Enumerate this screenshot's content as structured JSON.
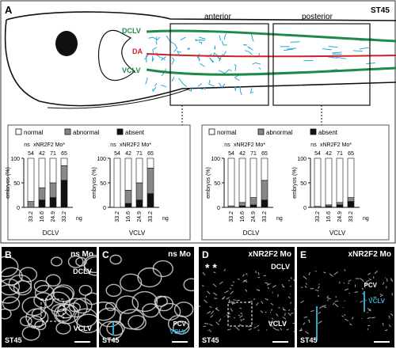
{
  "panelA": {
    "label": "A",
    "stage": "ST45",
    "vessel_labels": {
      "dclv": "DCLV",
      "da": "DA",
      "vclv": "VCLV"
    },
    "boxes": {
      "anterior": "anterior",
      "posterior": "posterior"
    }
  },
  "legend": {
    "normal": "normal",
    "abnormal": "abnormal",
    "absent": "absent"
  },
  "colors": {
    "dclv_green": "#1e8a4a",
    "da_red": "#d0202a",
    "lymph_cyan": "#29a9d6",
    "abnormal_gray": "#888888",
    "absent_black": "#111111"
  },
  "chart_data": [
    {
      "type": "bar",
      "title": "anterior DCLV",
      "xlabel": "DCLV",
      "ylabel": "embryos (%)",
      "ylim": [
        0,
        100
      ],
      "yticks": [
        0,
        50,
        100
      ],
      "categories": [
        "33.2",
        "16.6",
        "24.9",
        "33.2"
      ],
      "n": [
        "54",
        "42",
        "71",
        "65"
      ],
      "group_labels": [
        "ns",
        "xNR2F2 Mo*"
      ],
      "unit": "ng",
      "series": [
        {
          "name": "normal",
          "values": [
            88,
            60,
            50,
            15
          ]
        },
        {
          "name": "abnormal",
          "values": [
            12,
            25,
            30,
            30
          ]
        },
        {
          "name": "absent",
          "values": [
            0,
            15,
            20,
            55
          ]
        }
      ]
    },
    {
      "type": "bar",
      "title": "anterior VCLV",
      "xlabel": "VCLV",
      "ylabel": "embryos (%)",
      "ylim": [
        0,
        100
      ],
      "yticks": [
        0,
        50,
        100
      ],
      "categories": [
        "33.2",
        "16.6",
        "24.9",
        "33.2"
      ],
      "n": [
        "54",
        "42",
        "71",
        "65"
      ],
      "group_labels": [
        "ns",
        "xNR2F2 Mo*"
      ],
      "unit": "ng",
      "series": [
        {
          "name": "normal",
          "values": [
            100,
            65,
            50,
            20
          ]
        },
        {
          "name": "abnormal",
          "values": [
            0,
            27,
            35,
            52
          ]
        },
        {
          "name": "absent",
          "values": [
            0,
            8,
            15,
            28
          ]
        }
      ]
    },
    {
      "type": "bar",
      "title": "posterior DCLV",
      "xlabel": "DCLV",
      "ylabel": "embryos (%)",
      "ylim": [
        0,
        100
      ],
      "yticks": [
        0,
        50,
        100
      ],
      "categories": [
        "33.2",
        "16.6",
        "24.9",
        "33.2"
      ],
      "n": [
        "54",
        "42",
        "71",
        "65"
      ],
      "group_labels": [
        "ns",
        "xNR2F2 Mo*"
      ],
      "unit": "ng",
      "series": [
        {
          "name": "normal",
          "values": [
            97,
            90,
            80,
            45
          ]
        },
        {
          "name": "abnormal",
          "values": [
            3,
            7,
            15,
            40
          ]
        },
        {
          "name": "absent",
          "values": [
            0,
            3,
            5,
            15
          ]
        }
      ]
    },
    {
      "type": "bar",
      "title": "posterior VCLV",
      "xlabel": "VCLV",
      "ylabel": "embryos (%)",
      "ylim": [
        0,
        100
      ],
      "yticks": [
        0,
        50,
        100
      ],
      "categories": [
        "33.2",
        "16.6",
        "24.9",
        "33.2"
      ],
      "n": [
        "54",
        "42",
        "71",
        "65"
      ],
      "group_labels": [
        "ns",
        "xNR2F2 Mo*"
      ],
      "unit": "ng",
      "series": [
        {
          "name": "normal",
          "values": [
            98,
            95,
            90,
            80
          ]
        },
        {
          "name": "abnormal",
          "values": [
            2,
            3,
            5,
            8
          ]
        },
        {
          "name": "absent",
          "values": [
            0,
            2,
            5,
            12
          ]
        }
      ]
    }
  ],
  "bottom_panels": [
    {
      "label": "B",
      "title": "ns Mo",
      "stage": "ST45",
      "tags": [
        "DCLV",
        "VCLV"
      ]
    },
    {
      "label": "C",
      "title": "ns Mo",
      "stage": "ST45",
      "tags": [
        "PCV",
        "VCLV"
      ]
    },
    {
      "label": "D",
      "title": "xNR2F2 Mo",
      "stage": "ST45",
      "tags": [
        "DCLV",
        "VCLV"
      ],
      "stars": "* *"
    },
    {
      "label": "E",
      "title": "xNR2F2 Mo",
      "stage": "ST45",
      "tags": [
        "PCV",
        "VCLV"
      ]
    }
  ]
}
